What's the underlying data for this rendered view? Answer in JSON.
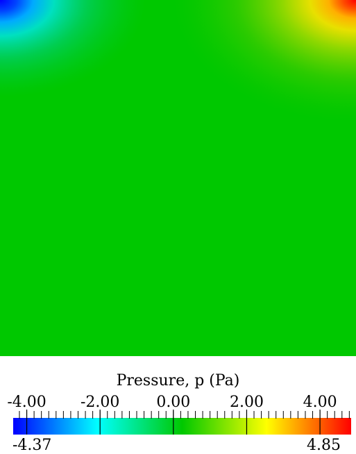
{
  "chart_data": {
    "type": "heatmap",
    "title": "Pressure, p (Pa)",
    "colormap": "rainbow (blue-cyan-green-yellow-red)",
    "colorbar_range": [
      -4.37,
      4.85
    ],
    "colorbar_ticks": [
      -4.0,
      -2.0,
      0.0,
      2.0,
      4.0
    ],
    "colorbar_tick_labels": [
      "-4.00",
      "-2.00",
      "0.00",
      "2.00",
      "4.00"
    ],
    "range_min_label": "-4.37",
    "range_max_label": "4.85",
    "field_features": [
      {
        "location": "top-left corner",
        "value": -4.37
      },
      {
        "location": "top-right corner",
        "value": 4.85
      },
      {
        "location": "interior",
        "value": 0.0
      }
    ],
    "colors": {
      "min": "#0000ff",
      "low": "#00ffff",
      "mid": "#00c800",
      "high": "#ffff00",
      "max": "#ff0000"
    }
  }
}
